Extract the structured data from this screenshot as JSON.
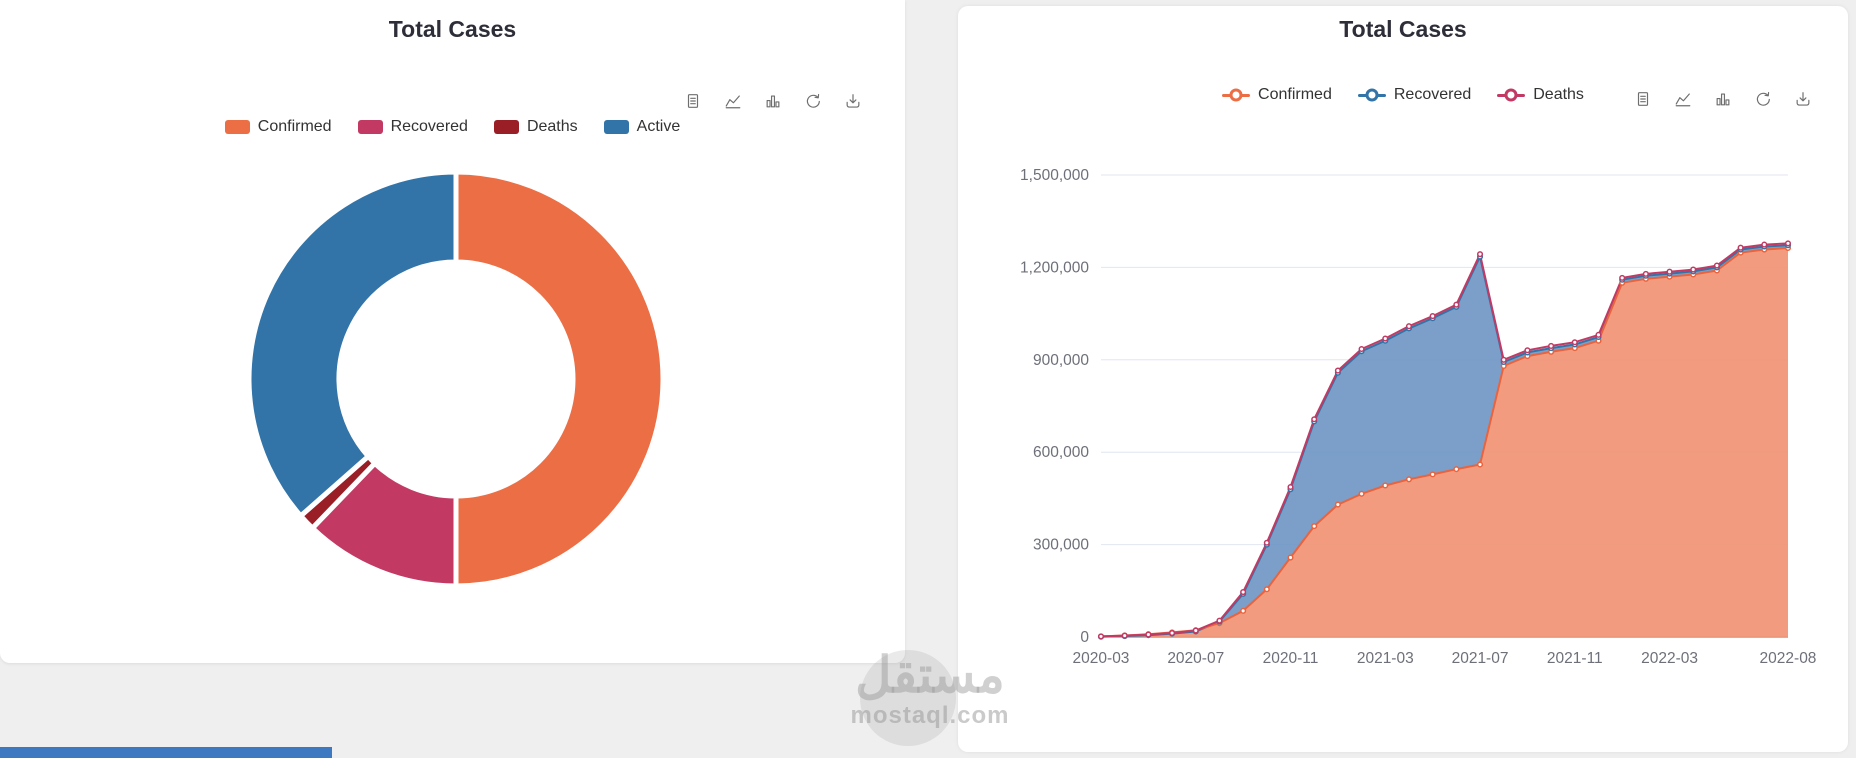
{
  "page": {
    "background": "#efefef",
    "watermark": {
      "arabic": "مستقل",
      "latin": "mostaql.com"
    },
    "bottom_bar_color": "#3d79c0"
  },
  "left_card": {
    "title": "Total Cases",
    "legend": [
      {
        "label": "Confirmed",
        "color": "#EC6E45"
      },
      {
        "label": "Recovered",
        "color": "#C23A64"
      },
      {
        "label": "Deaths",
        "color": "#9A1E26"
      },
      {
        "label": "Active",
        "color": "#3274A8"
      }
    ],
    "toolbar": [
      "data-view",
      "line-chart",
      "bar-chart",
      "restore",
      "download"
    ]
  },
  "right_card": {
    "title": "Total Cases",
    "legend": [
      {
        "label": "Confirmed",
        "color": "#EC6E45"
      },
      {
        "label": "Recovered",
        "color": "#3274A8"
      },
      {
        "label": "Deaths",
        "color": "#C23A64"
      }
    ],
    "toolbar": [
      "data-view",
      "line-chart",
      "bar-chart",
      "restore",
      "download"
    ]
  },
  "chart_data": [
    {
      "type": "pie",
      "title": "Total Cases",
      "donut": true,
      "start_angle_deg": -90,
      "legend_position": "top",
      "slices": [
        {
          "label": "Confirmed",
          "value_pct": 50.0,
          "color": "#EC6E45"
        },
        {
          "label": "Recovered",
          "value_pct": 12.2,
          "color": "#C23A64"
        },
        {
          "label": "Deaths",
          "value_pct": 1.3,
          "color": "#9A1E26"
        },
        {
          "label": "Active",
          "value_pct": 36.5,
          "color": "#3274A8"
        }
      ]
    },
    {
      "type": "area",
      "title": "Total Cases",
      "legend_position": "top",
      "grid": true,
      "ylim": [
        0,
        1500000
      ],
      "yticks": [
        0,
        300000,
        600000,
        900000,
        1200000,
        1500000
      ],
      "ytick_labels": [
        "0",
        "300,000",
        "600,000",
        "900,000",
        "1,200,000",
        "1,500,000"
      ],
      "x": [
        "2020-03",
        "2020-04",
        "2020-05",
        "2020-06",
        "2020-07",
        "2020-08",
        "2020-09",
        "2020-10",
        "2020-11",
        "2020-12",
        "2021-01",
        "2021-02",
        "2021-03",
        "2021-04",
        "2021-05",
        "2021-06",
        "2021-07",
        "2021-08",
        "2021-09",
        "2021-10",
        "2021-11",
        "2021-12",
        "2022-01",
        "2022-02",
        "2022-03",
        "2022-04",
        "2022-05",
        "2022-06",
        "2022-07",
        "2022-08"
      ],
      "x_tick_labels": [
        "2020-03",
        "2020-07",
        "2020-11",
        "2021-03",
        "2021-07",
        "2021-11",
        "2022-03",
        "2022-08"
      ],
      "series": [
        {
          "name": "Confirmed",
          "color": "#E9643E",
          "area_color": "#F19274",
          "values": [
            2000,
            5000,
            9000,
            15000,
            22000,
            45000,
            85000,
            155000,
            258000,
            360000,
            430000,
            465000,
            492000,
            512000,
            528000,
            545000,
            560000,
            880000,
            912000,
            926000,
            938000,
            962000,
            1150000,
            1163000,
            1170000,
            1177000,
            1190000,
            1248000,
            1258000,
            1263000
          ]
        },
        {
          "name": "Recovered",
          "color": "#3274A8",
          "area_color": "#6D95C3",
          "values": [
            1000,
            3000,
            6000,
            11000,
            18000,
            50000,
            140000,
            300000,
            480000,
            700000,
            858000,
            928000,
            962000,
            1002000,
            1035000,
            1072000,
            1235000,
            893000,
            924000,
            938000,
            950000,
            974000,
            1160000,
            1173000,
            1180000,
            1187000,
            1200000,
            1258000,
            1268000,
            1272000
          ]
        },
        {
          "name": "Deaths",
          "color": "#C23A64",
          "area_color": null,
          "values": [
            2000,
            4500,
            8000,
            13000,
            21000,
            53000,
            146000,
            306000,
            487000,
            707000,
            865000,
            935000,
            969000,
            1009000,
            1042000,
            1079000,
            1243000,
            900000,
            931000,
            945000,
            957000,
            981000,
            1166000,
            1179000,
            1186000,
            1193000,
            1206000,
            1264000,
            1274000,
            1278000
          ]
        }
      ],
      "axis_colors": {
        "grid": "#E0E6F1",
        "axis_line": "#6E7079",
        "tick_label": "#6E7079"
      }
    }
  ]
}
